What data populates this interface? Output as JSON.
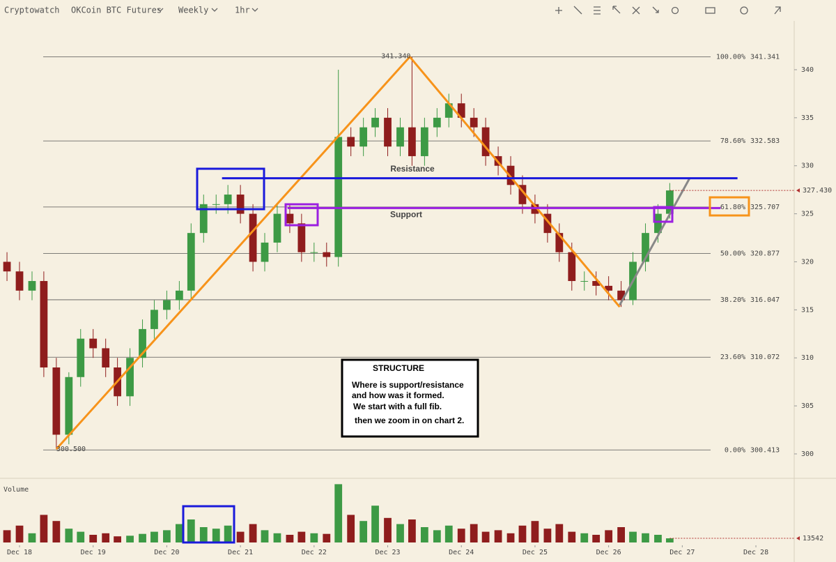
{
  "toolbar": {
    "brand": "Cryptowatch",
    "market": "OKCoin BTC Futures",
    "period": "Weekly",
    "interval": "1hr"
  },
  "chart_data": {
    "type": "candlestick",
    "x": [
      17.83,
      18.0,
      18.17,
      18.33,
      18.5,
      18.67,
      18.83,
      19.0,
      19.17,
      19.33,
      19.5,
      19.67,
      19.83,
      20.0,
      20.17,
      20.33,
      20.5,
      20.67,
      20.83,
      21.0,
      21.17,
      21.33,
      21.5,
      21.67,
      21.83,
      22.0,
      22.17,
      22.33,
      22.5,
      22.67,
      22.83,
      23.0,
      23.17,
      23.33,
      23.5,
      23.67,
      23.83,
      24.0,
      24.17,
      24.33,
      24.5,
      24.67,
      24.83,
      25.0,
      25.17,
      25.33,
      25.5,
      25.67,
      25.83,
      26.0,
      26.17,
      26.33,
      26.5,
      26.67,
      26.83
    ],
    "open": [
      320,
      319,
      317,
      318,
      309,
      302,
      308,
      312,
      311,
      309,
      306,
      310,
      313,
      315,
      316,
      317,
      323,
      326,
      326,
      327,
      325,
      320,
      322,
      325,
      324,
      321,
      321,
      320.5,
      333,
      332,
      334,
      335,
      332,
      334,
      331,
      334,
      335,
      336.5,
      335,
      334,
      331,
      330,
      328,
      326,
      325,
      323,
      321,
      318,
      318,
      317.5,
      317,
      316,
      320,
      323,
      325
    ],
    "high": [
      321,
      320,
      319,
      319,
      310,
      308.5,
      313,
      313,
      312,
      310,
      311,
      314,
      316,
      317,
      318,
      324,
      327,
      327,
      328,
      328,
      326,
      323,
      326,
      326,
      325,
      322,
      322,
      340,
      334,
      335,
      336,
      336,
      335,
      341.34,
      335,
      336,
      337.5,
      337.5,
      336,
      335,
      332,
      331,
      329,
      327,
      326,
      324,
      322,
      319,
      319,
      318.5,
      318,
      321,
      324,
      326,
      328.2
    ],
    "low": [
      318,
      316,
      316,
      308,
      300.5,
      301,
      307,
      310,
      308,
      305,
      305,
      309,
      312,
      314,
      315,
      316,
      322,
      325,
      325,
      324,
      319,
      319,
      321,
      323,
      320,
      320,
      319.5,
      319.5,
      331,
      331,
      333,
      331,
      331,
      330,
      330,
      333,
      334,
      334,
      333,
      330,
      329,
      327,
      325,
      324,
      322,
      320,
      317,
      317,
      316.5,
      316,
      315.3,
      315.5,
      319,
      322,
      324.5
    ],
    "close": [
      319,
      317,
      318,
      309,
      302,
      308,
      312,
      311,
      309,
      306,
      310,
      313,
      315,
      316,
      317,
      323,
      326,
      326,
      327,
      325,
      320,
      322,
      325,
      324,
      321,
      321,
      320.5,
      333,
      332,
      334,
      335,
      332,
      334,
      331,
      334,
      335,
      336.5,
      335,
      334,
      331,
      330,
      328,
      326,
      325,
      323,
      321,
      318,
      318,
      317.5,
      317,
      316,
      320,
      323,
      325,
      327.43
    ],
    "volume": [
      40000,
      55000,
      30000,
      90000,
      70000,
      45000,
      35000,
      25000,
      30000,
      20000,
      22000,
      28000,
      35000,
      40000,
      60000,
      75000,
      50000,
      45000,
      55000,
      35000,
      60000,
      40000,
      30000,
      25000,
      35000,
      30000,
      28000,
      190000,
      90000,
      70000,
      120000,
      80000,
      60000,
      75000,
      50000,
      40000,
      55000,
      45000,
      60000,
      35000,
      40000,
      30000,
      55000,
      70000,
      45000,
      60000,
      35000,
      30000,
      25000,
      40000,
      50000,
      35000,
      30000,
      25000,
      13542
    ],
    "up_color": "#3d9a45",
    "down_color": "#8f1d1d",
    "xlim": [
      17.735,
      28.52
    ],
    "xticks": [
      {
        "value": 18,
        "label": "Dec 18"
      },
      {
        "value": 19,
        "label": "Dec 19"
      },
      {
        "value": 20,
        "label": "Dec 20"
      },
      {
        "value": 21,
        "label": "Dec 21"
      },
      {
        "value": 22,
        "label": "Dec 22"
      },
      {
        "value": 23,
        "label": "Dec 23"
      },
      {
        "value": 24,
        "label": "Dec 24"
      },
      {
        "value": 25,
        "label": "Dec 25"
      },
      {
        "value": 26,
        "label": "Dec 26"
      },
      {
        "value": 27,
        "label": "Dec 27"
      },
      {
        "value": 28,
        "label": "Dec 28"
      }
    ],
    "ylim": [
      297.53,
      345.08
    ],
    "yticks": [
      300,
      305,
      310,
      315,
      320,
      325,
      330,
      335,
      340
    ],
    "volume_label": "Volume",
    "volume_ylim": [
      0,
      200000
    ],
    "fib": [
      {
        "label": "100.00%",
        "value": 341.341
      },
      {
        "label": "78.60%",
        "value": 332.583
      },
      {
        "label": "61.80%",
        "value": 325.707
      },
      {
        "label": "50.00%",
        "value": 320.877
      },
      {
        "label": "38.20%",
        "value": 316.047
      },
      {
        "label": "23.60%",
        "value": 310.072
      },
      {
        "label": "0.00%",
        "value": 300.413
      }
    ],
    "high_marker": {
      "x": 23.33,
      "value": 341.34,
      "label": "341.340"
    },
    "low_marker": {
      "x": 18.5,
      "value": 300.5,
      "label": "300.500"
    },
    "last_price": {
      "value": 327.43,
      "label": "327.430"
    },
    "zigzag": {
      "x": [
        18.5,
        23.3,
        26.15
      ],
      "y": [
        300.5,
        341.34,
        315.3
      ],
      "color": "#f7931a"
    },
    "trend": {
      "x": [
        26.15,
        27.1
      ],
      "y": [
        315.5,
        328.7
      ],
      "color": "#888888"
    },
    "resistance": {
      "label": "Resistance",
      "x": [
        20.75,
        27.75
      ],
      "y": [
        328.7,
        328.7
      ],
      "color": "#1a1adb"
    },
    "support": {
      "label": "Support",
      "x": [
        21.64,
        27.52
      ],
      "y": [
        325.6,
        325.6
      ],
      "color": "#9b1fe0"
    },
    "note": {
      "title": "STRUCTURE",
      "lines": [
        "Where is support/resistance",
        "and how was it formed.",
        "We start with a full fib.",
        "then we zoom in on chart 2."
      ]
    }
  }
}
